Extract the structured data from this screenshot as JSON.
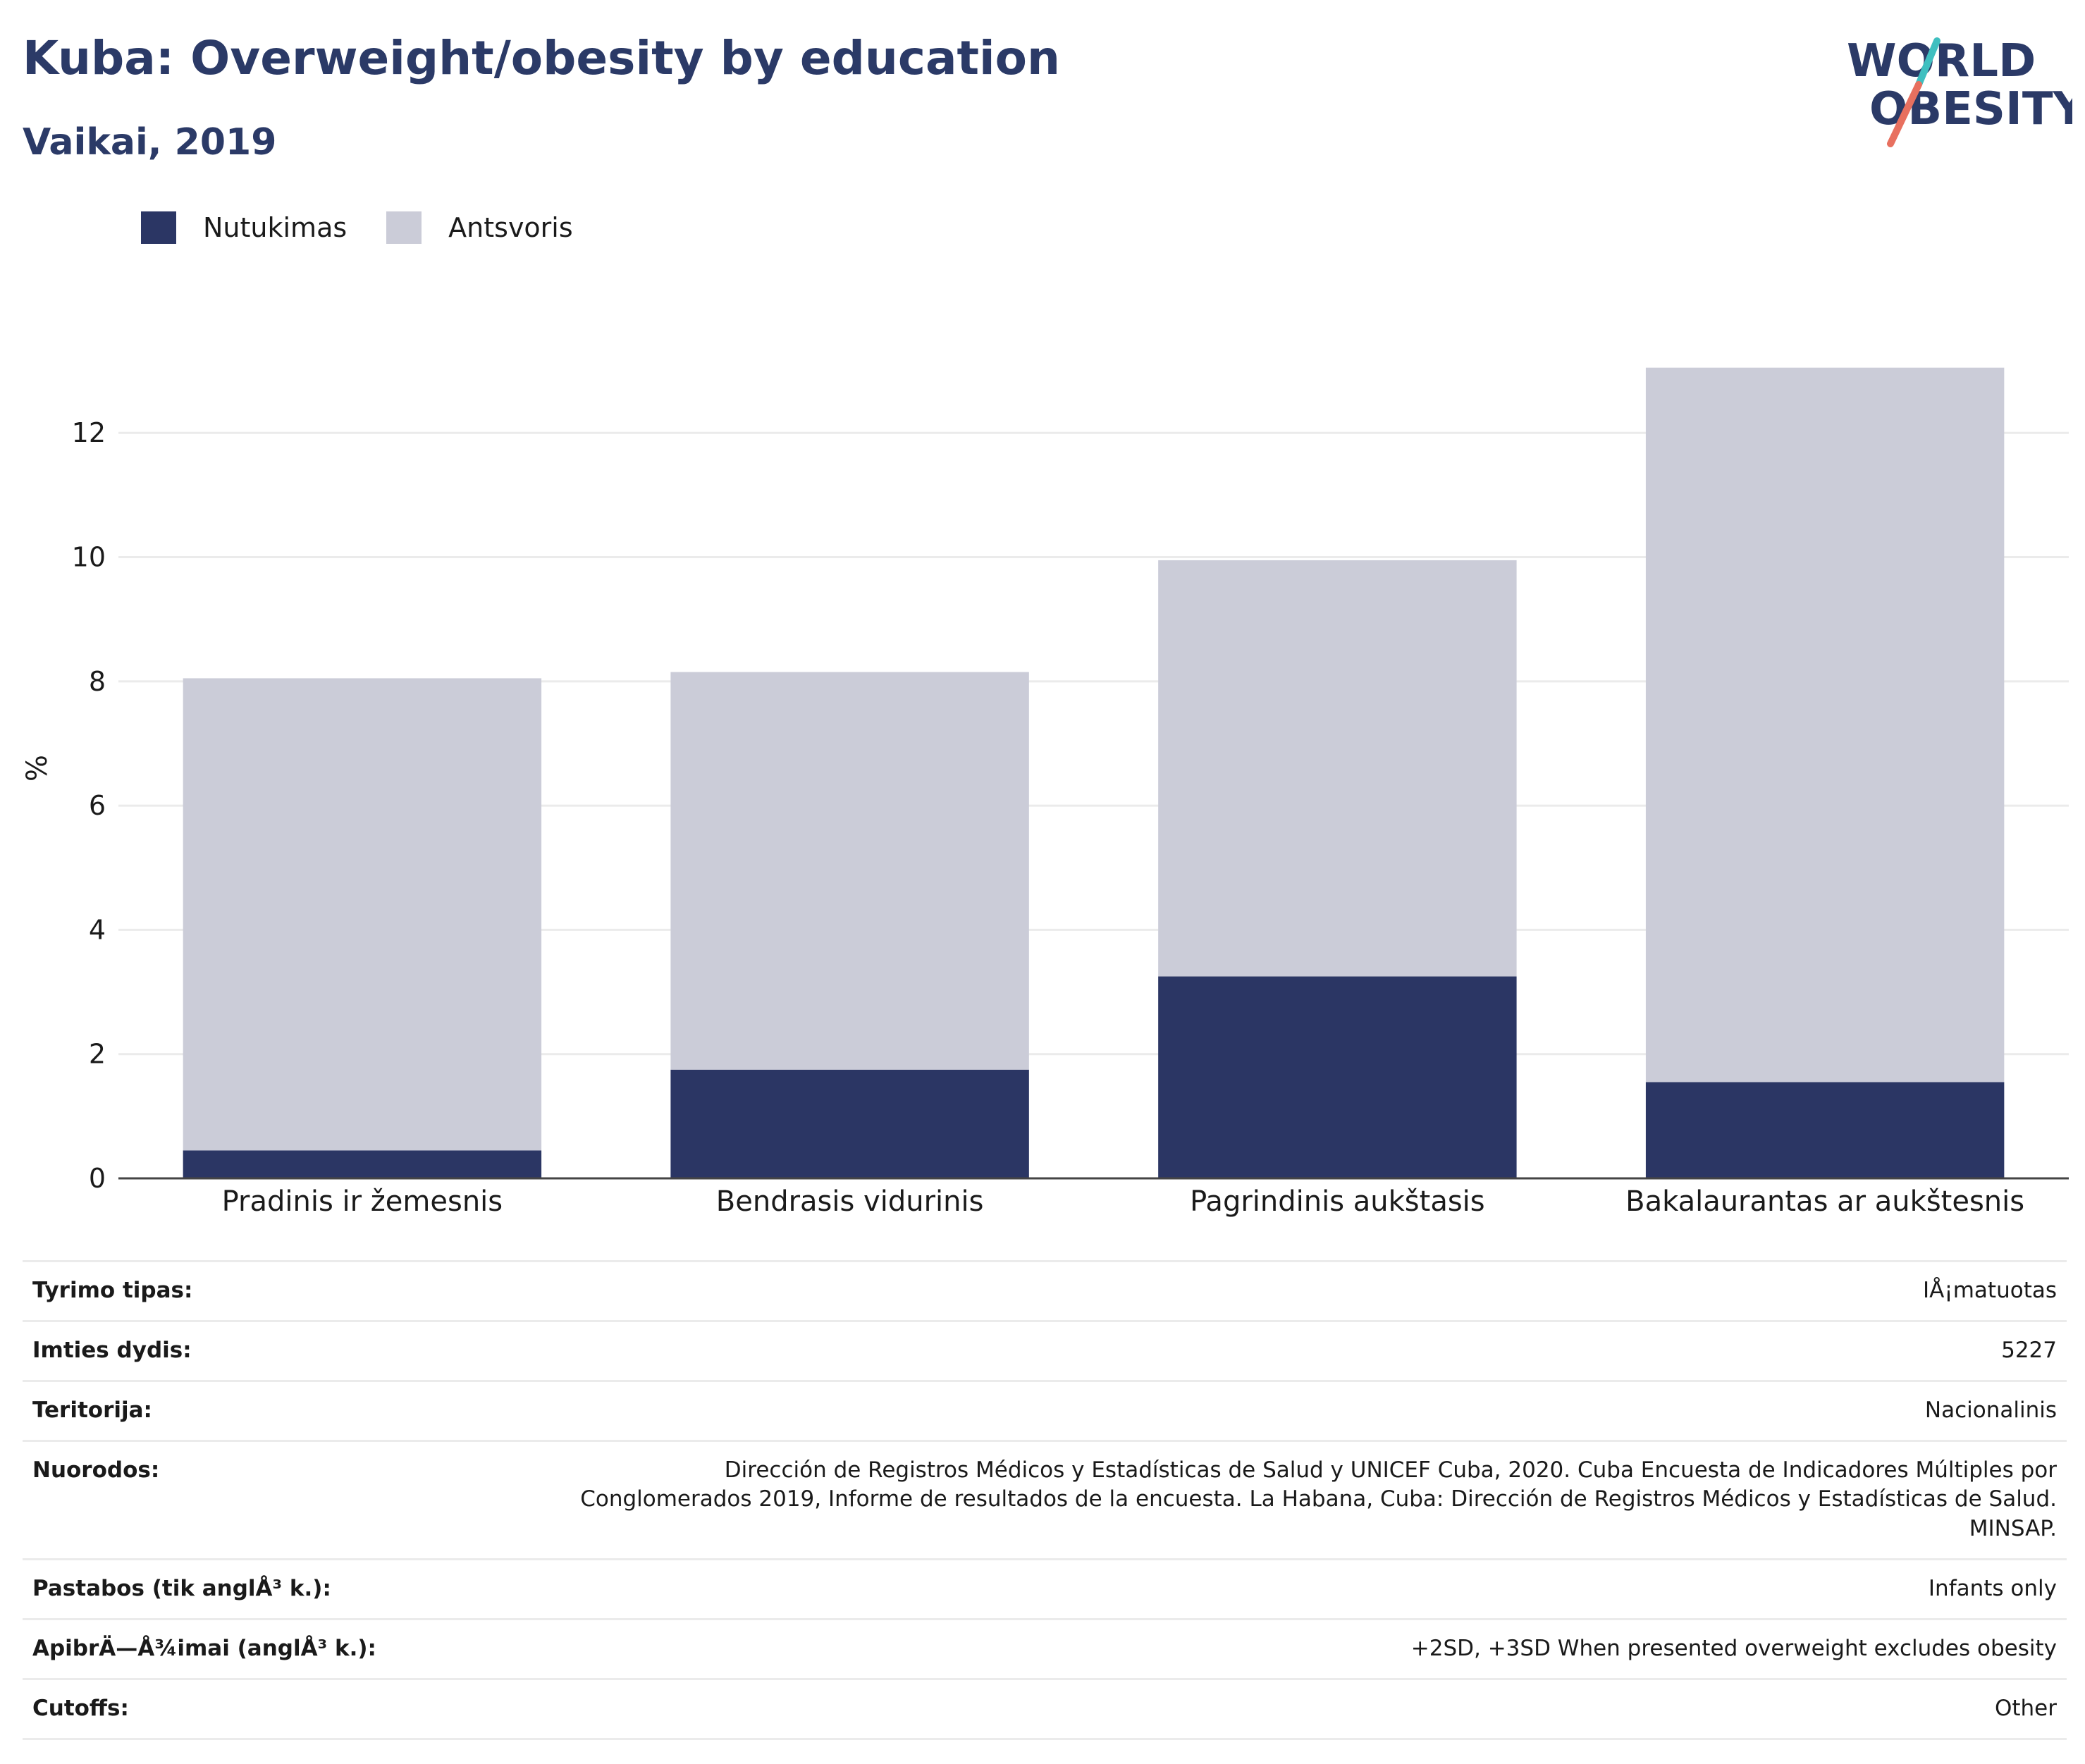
{
  "header": {
    "title": "Kuba: Overweight/obesity by education",
    "subtitle": "Vaikai, 2019"
  },
  "logo": {
    "line1": "WORLD",
    "line2": "OBESITY"
  },
  "colors": {
    "obesity": "#2b3664",
    "overweight": "#cbccd8",
    "text_dark": "#2b3a67",
    "logo_teal": "#3fbfc0",
    "logo_coral": "#e8705f"
  },
  "chart_data": {
    "type": "bar",
    "stacked": true,
    "title": "Kuba: Overweight/obesity by education",
    "subtitle": "Vaikai, 2019",
    "xlabel": "",
    "ylabel": "%",
    "ylim": [
      0,
      13.5
    ],
    "yticks": [
      0,
      2,
      4,
      6,
      8,
      10,
      12
    ],
    "grid": true,
    "legend_position": "top-left",
    "categories": [
      "Pradinis ir žemesnis",
      "Bendrasis vidurinis",
      "Pagrindinis aukštasis",
      "Bakalaurantas ar aukštesnis"
    ],
    "series": [
      {
        "name": "Nutukimas",
        "values": [
          0.45,
          1.75,
          3.25,
          1.55
        ]
      },
      {
        "name": "Antsvoris",
        "values": [
          7.6,
          6.4,
          6.7,
          11.5
        ]
      }
    ]
  },
  "meta": [
    {
      "label": "Tyrimo tipas:",
      "value": "IÅ¡matuotas"
    },
    {
      "label": "Imties dydis:",
      "value": "5227"
    },
    {
      "label": "Teritorija:",
      "value": "Nacionalinis"
    },
    {
      "label": "Nuorodos:",
      "value": "Dirección de Registros Médicos y Estadísticas de Salud y UNICEF Cuba, 2020. Cuba Encuesta de Indicadores Múltiples por Conglomerados 2019, Informe de resultados de la encuesta. La Habana, Cuba: Dirección de Registros Médicos y Estadísticas de Salud. MINSAP."
    },
    {
      "label": "Pastabos (tik anglÅ³ k.):",
      "value": "Infants only"
    },
    {
      "label": "ApibrÄ—Å¾imai (anglÅ³ k.):",
      "value": "+2SD, +3SD When presented overweight excludes obesity"
    },
    {
      "label": "Cutoffs:",
      "value": "Other"
    }
  ]
}
